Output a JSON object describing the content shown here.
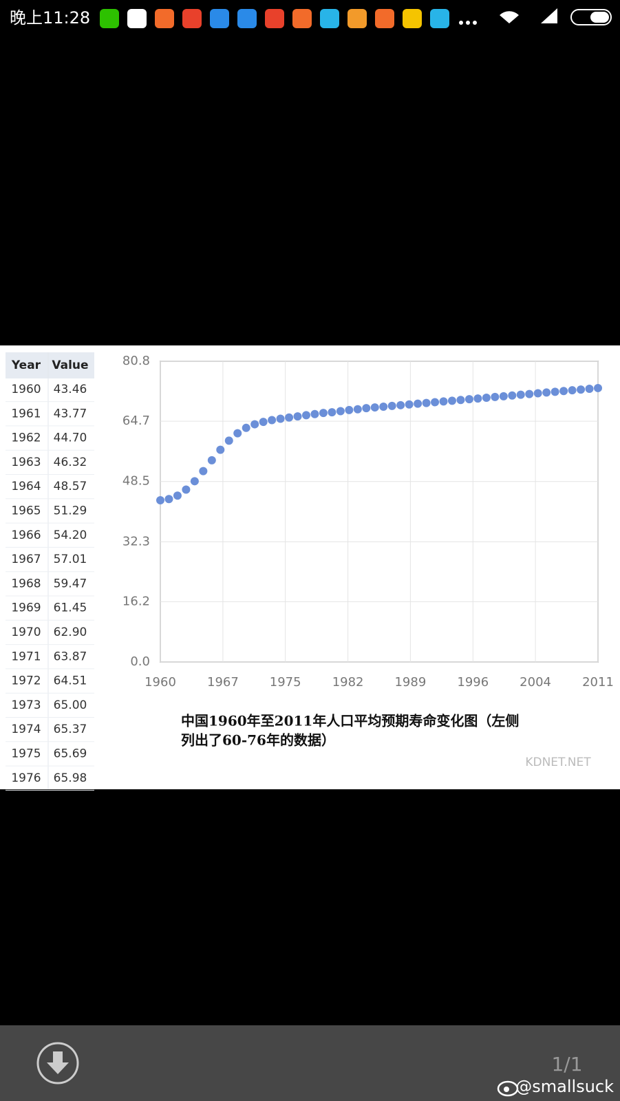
{
  "status_bar": {
    "time": "晚上11:28"
  },
  "table": {
    "header": [
      "Year",
      "Value"
    ],
    "rows": [
      [
        "1960",
        "43.46"
      ],
      [
        "1961",
        "43.77"
      ],
      [
        "1962",
        "44.70"
      ],
      [
        "1963",
        "46.32"
      ],
      [
        "1964",
        "48.57"
      ],
      [
        "1965",
        "51.29"
      ],
      [
        "1966",
        "54.20"
      ],
      [
        "1967",
        "57.01"
      ],
      [
        "1968",
        "59.47"
      ],
      [
        "1969",
        "61.45"
      ],
      [
        "1970",
        "62.90"
      ],
      [
        "1971",
        "63.87"
      ],
      [
        "1972",
        "64.51"
      ],
      [
        "1973",
        "65.00"
      ],
      [
        "1974",
        "65.37"
      ],
      [
        "1975",
        "65.69"
      ],
      [
        "1976",
        "65.98"
      ]
    ]
  },
  "chart_data": {
    "type": "scatter",
    "color": "#6b8fd8",
    "grid": true,
    "x": [
      1960,
      1961,
      1962,
      1963,
      1964,
      1965,
      1966,
      1967,
      1968,
      1969,
      1970,
      1971,
      1972,
      1973,
      1974,
      1975,
      1976,
      1977,
      1978,
      1979,
      1980,
      1981,
      1982,
      1983,
      1984,
      1985,
      1986,
      1987,
      1988,
      1989,
      1990,
      1991,
      1992,
      1993,
      1994,
      1995,
      1996,
      1997,
      1998,
      1999,
      2000,
      2001,
      2002,
      2003,
      2004,
      2005,
      2006,
      2007,
      2008,
      2009,
      2010,
      2011
    ],
    "values": [
      43.46,
      43.77,
      44.7,
      46.32,
      48.57,
      51.29,
      54.2,
      57.01,
      59.47,
      61.45,
      62.9,
      63.87,
      64.51,
      65.0,
      65.37,
      65.69,
      65.98,
      66.3,
      66.6,
      66.9,
      67.1,
      67.4,
      67.7,
      67.9,
      68.2,
      68.4,
      68.6,
      68.8,
      69.0,
      69.2,
      69.4,
      69.6,
      69.8,
      70.0,
      70.2,
      70.4,
      70.6,
      70.8,
      71.0,
      71.2,
      71.4,
      71.6,
      71.8,
      72.0,
      72.2,
      72.4,
      72.6,
      72.8,
      73.0,
      73.2,
      73.4,
      73.6
    ],
    "xlim": [
      1960,
      2011
    ],
    "xticks": [
      1960,
      {
        "value": 1967.29,
        "label": "1967"
      },
      {
        "value": 1974.57,
        "label": "1975"
      },
      {
        "value": 1981.86,
        "label": "1982"
      },
      {
        "value": 1989.14,
        "label": "1989"
      },
      {
        "value": 1996.43,
        "label": "1996"
      },
      {
        "value": 2003.71,
        "label": "2004"
      },
      2011
    ],
    "ylim": [
      0,
      80.8
    ],
    "yticks": [
      {
        "value": 0,
        "label": "0.0"
      },
      16.2,
      32.3,
      48.5,
      64.7,
      80.8
    ]
  },
  "caption": [
    "中国1960年至2011年人口平均预期寿命变化图（左侧",
    "列出了60-76年的数据）"
  ],
  "watermark_site": "KDNET.NET",
  "viewer": {
    "page_indicator": "1/1",
    "credit": "@smallsuck"
  }
}
